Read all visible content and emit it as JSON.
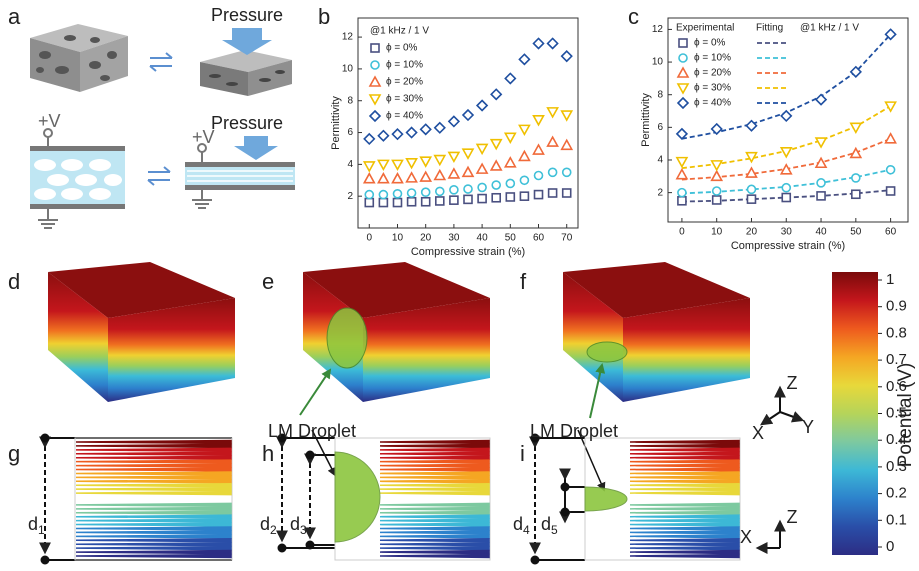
{
  "panel_labels": [
    "a",
    "b",
    "c",
    "d",
    "e",
    "f",
    "g",
    "h",
    "i"
  ],
  "panel_a": {
    "pressure_labels": [
      "Pressure",
      "Pressure"
    ],
    "voltage_labels": [
      "+V",
      "+V"
    ]
  },
  "simulation": {
    "droplet_labels": [
      "LM Droplet",
      "LM Droplet"
    ],
    "dimensions": [
      {
        "base": "d",
        "sub": "1"
      },
      {
        "base": "d",
        "sub": "2"
      },
      {
        "base": "d",
        "sub": "3"
      },
      {
        "base": "d",
        "sub": "4"
      },
      {
        "base": "d",
        "sub": "5"
      }
    ],
    "axes_3d": [
      "Z",
      "X",
      "Y"
    ],
    "axes_2d": [
      "Z",
      "X"
    ]
  },
  "colorbar": {
    "label": "Potential (V)",
    "lim": [
      0,
      1
    ],
    "ticks": [
      0,
      0.1,
      0.2,
      0.3,
      0.4,
      0.5,
      0.6,
      0.7,
      0.8,
      0.9,
      1
    ]
  },
  "chart_data": [
    {
      "type": "scatter",
      "legend_title": "@1 kHz / 1 V",
      "x_label": "Compressive strain (%)",
      "y_label": "Permittivity",
      "x": [
        0,
        5,
        10,
        15,
        20,
        25,
        30,
        35,
        40,
        45,
        50,
        55,
        60,
        65,
        70
      ],
      "xlim": [
        -4,
        74
      ],
      "xticks": [
        0,
        10,
        20,
        30,
        40,
        50,
        60,
        70
      ],
      "ylim": [
        0,
        13.2
      ],
      "yticks": [
        2,
        4,
        6,
        8,
        10,
        12
      ],
      "series": [
        {
          "name": "ϕ = 0%",
          "color": "#4a5080",
          "marker": "square",
          "values": [
            1.6,
            1.6,
            1.6,
            1.65,
            1.65,
            1.7,
            1.75,
            1.8,
            1.85,
            1.9,
            1.95,
            2.0,
            2.1,
            2.2,
            2.2
          ]
        },
        {
          "name": "ϕ = 10%",
          "color": "#3fc0d8",
          "marker": "circle",
          "values": [
            2.1,
            2.1,
            2.15,
            2.2,
            2.25,
            2.3,
            2.4,
            2.45,
            2.55,
            2.7,
            2.8,
            3.0,
            3.3,
            3.5,
            3.5
          ]
        },
        {
          "name": "ϕ = 20%",
          "color": "#f06a3a",
          "marker": "triangle",
          "values": [
            3.1,
            3.1,
            3.1,
            3.15,
            3.2,
            3.3,
            3.4,
            3.5,
            3.7,
            3.9,
            4.1,
            4.5,
            4.9,
            5.4,
            5.2
          ]
        },
        {
          "name": "ϕ = 30%",
          "color": "#f0c000",
          "marker": "triangle-down",
          "values": [
            3.9,
            4.0,
            4.0,
            4.1,
            4.2,
            4.3,
            4.5,
            4.7,
            5.0,
            5.3,
            5.7,
            6.2,
            6.8,
            7.3,
            7.1
          ]
        },
        {
          "name": "ϕ = 40%",
          "color": "#1f4fa0",
          "marker": "diamond",
          "values": [
            5.6,
            5.8,
            5.9,
            6.0,
            6.2,
            6.3,
            6.7,
            7.1,
            7.7,
            8.4,
            9.4,
            10.6,
            11.6,
            11.6,
            10.8
          ]
        }
      ]
    },
    {
      "type": "scatter",
      "legend_headers": [
        "Experimental",
        "Fitting",
        "@1 kHz / 1 V"
      ],
      "x_label": "Compressive strain (%)",
      "y_label": "Permittivity",
      "x": [
        0,
        10,
        20,
        30,
        40,
        50,
        60
      ],
      "xlim": [
        -4,
        65
      ],
      "xticks": [
        0,
        10,
        20,
        30,
        40,
        50,
        60
      ],
      "ylim": [
        0.2,
        12.7
      ],
      "yticks": [
        2,
        4,
        6,
        8,
        10,
        12
      ],
      "series": [
        {
          "name": "ϕ = 0%",
          "color": "#4a5080",
          "marker": "square",
          "values": [
            1.5,
            1.55,
            1.6,
            1.7,
            1.8,
            1.9,
            2.1
          ],
          "fit": [
            1.45,
            1.5,
            1.6,
            1.7,
            1.8,
            1.95,
            2.15
          ]
        },
        {
          "name": "ϕ = 10%",
          "color": "#3fc0d8",
          "marker": "circle",
          "values": [
            2.0,
            2.1,
            2.2,
            2.3,
            2.6,
            2.9,
            3.4
          ],
          "fit": [
            1.95,
            2.05,
            2.2,
            2.35,
            2.6,
            2.95,
            3.4
          ]
        },
        {
          "name": "ϕ = 20%",
          "color": "#f06a3a",
          "marker": "triangle",
          "values": [
            3.1,
            3.0,
            3.2,
            3.4,
            3.8,
            4.4,
            5.3
          ],
          "fit": [
            2.8,
            2.95,
            3.15,
            3.45,
            3.85,
            4.45,
            5.3
          ]
        },
        {
          "name": "ϕ = 30%",
          "color": "#f0c000",
          "marker": "triangle-down",
          "values": [
            3.9,
            3.7,
            4.2,
            4.5,
            5.1,
            6.0,
            7.3
          ],
          "fit": [
            3.5,
            3.75,
            4.1,
            4.55,
            5.2,
            6.05,
            7.3
          ]
        },
        {
          "name": "ϕ = 40%",
          "color": "#1f4fa0",
          "marker": "diamond",
          "values": [
            5.6,
            5.9,
            6.1,
            6.7,
            7.7,
            9.4,
            11.7
          ],
          "fit": [
            5.3,
            5.7,
            6.2,
            6.9,
            7.9,
            9.4,
            11.7
          ]
        }
      ]
    }
  ]
}
